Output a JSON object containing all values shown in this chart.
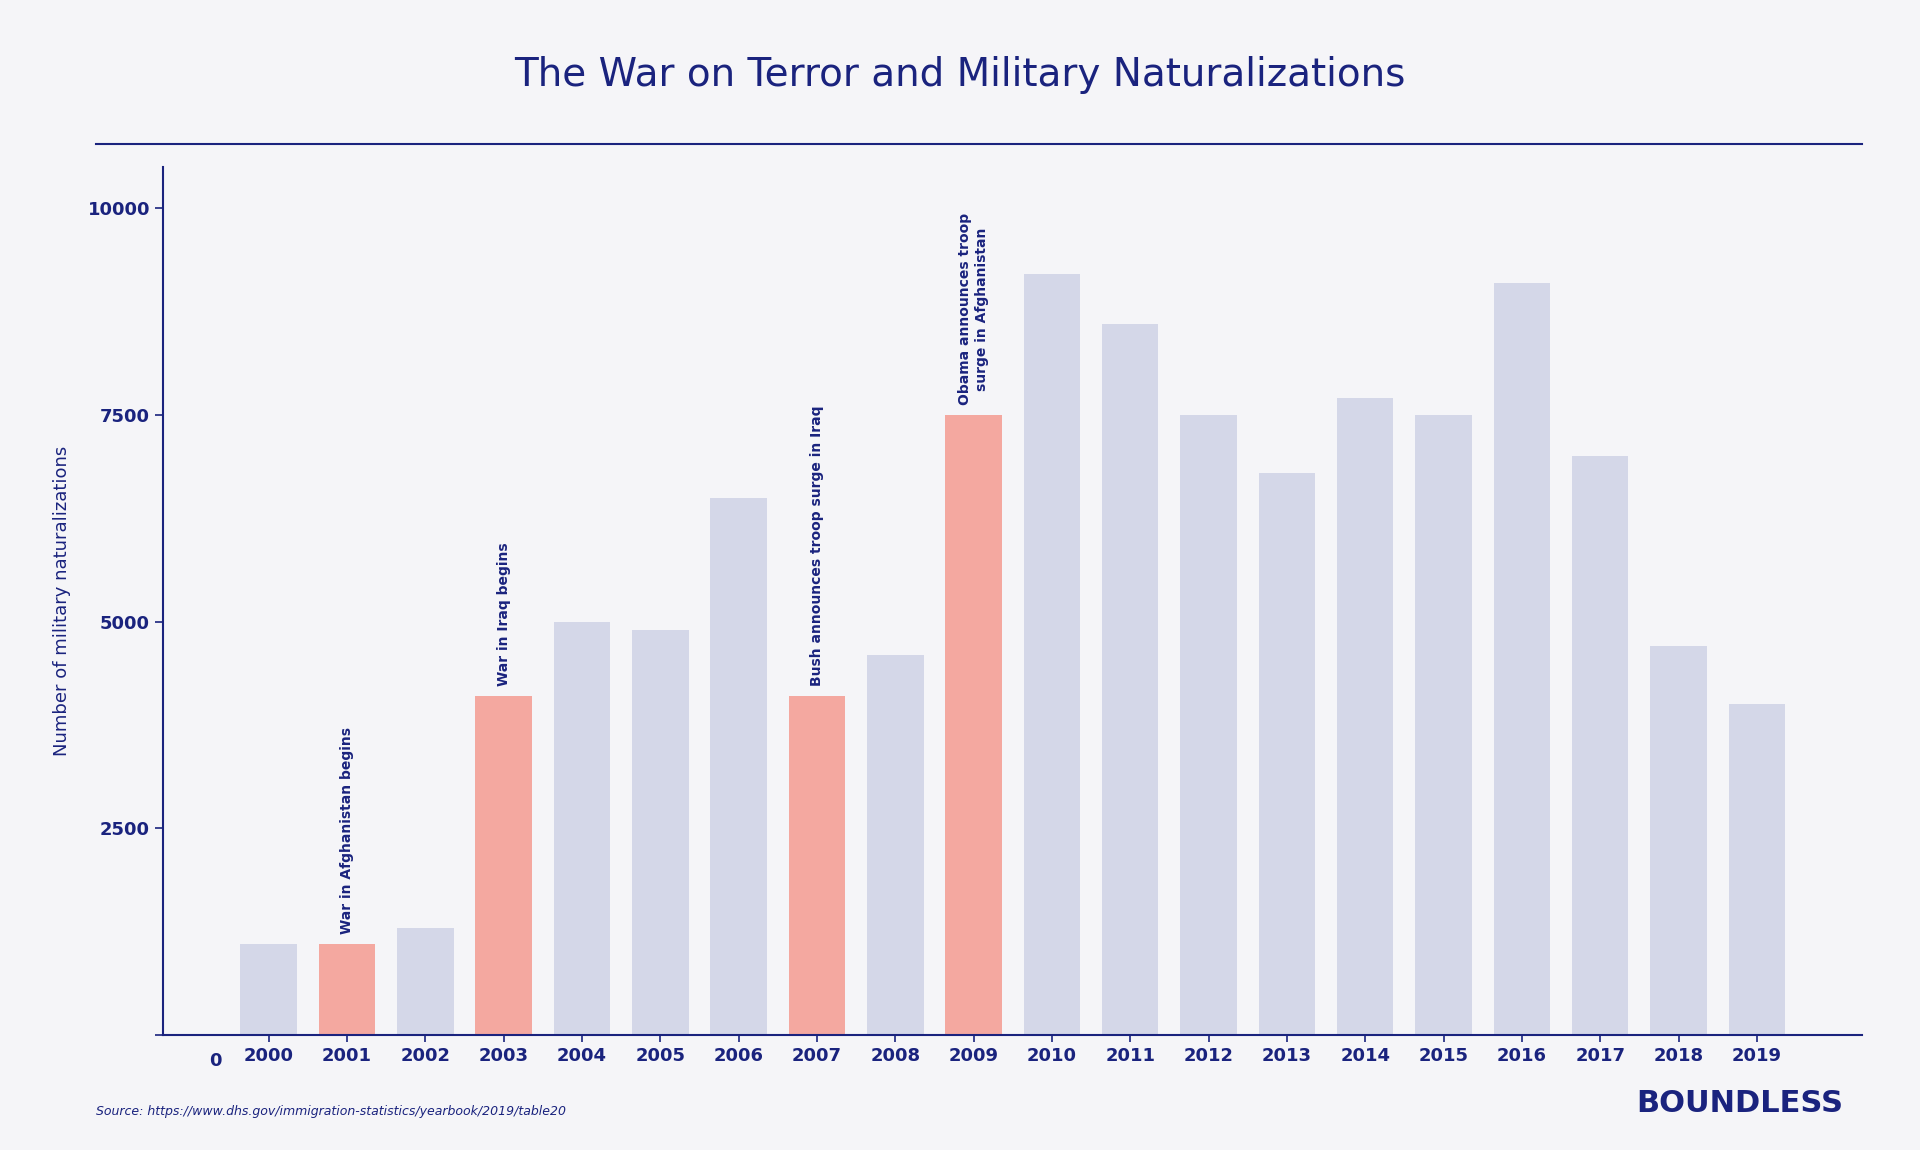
{
  "title": "The War on Terror and Military Naturalizations",
  "ylabel": "Number of military naturalizations",
  "source": "Source: https://www.dhs.gov/immigration-statistics/yearbook/2019/table20",
  "boundless": "BOUNDLESS",
  "years": [
    2000,
    2001,
    2002,
    2003,
    2004,
    2005,
    2006,
    2007,
    2008,
    2009,
    2010,
    2011,
    2012,
    2013,
    2014,
    2015,
    2016,
    2017,
    2018,
    2019
  ],
  "values": [
    1100,
    1100,
    1300,
    4100,
    5000,
    4900,
    6500,
    4100,
    4600,
    7500,
    9200,
    8600,
    7500,
    6800,
    7700,
    7500,
    9100,
    7000,
    4700,
    4000
  ],
  "bar_colors": [
    "#d4d7e8",
    "#f4a8a0",
    "#d4d7e8",
    "#f4a8a0",
    "#d4d7e8",
    "#d4d7e8",
    "#d4d7e8",
    "#f4a8a0",
    "#d4d7e8",
    "#f4a8a0",
    "#d4d7e8",
    "#d4d7e8",
    "#d4d7e8",
    "#d4d7e8",
    "#d4d7e8",
    "#d4d7e8",
    "#d4d7e8",
    "#d4d7e8",
    "#d4d7e8",
    "#d4d7e8"
  ],
  "annotations": [
    {
      "year": 2001,
      "text": "War in Afghanistan begins"
    },
    {
      "year": 2003,
      "text": "War in Iraq begins"
    },
    {
      "year": 2007,
      "text": "Bush announces troop surge in Iraq"
    },
    {
      "year": 2009,
      "text": "Obama announces troop\nsurge in Afghanistan"
    }
  ],
  "ylim": [
    0,
    10500
  ],
  "yticks": [
    0,
    2500,
    5000,
    7500,
    10000
  ],
  "background_color": "#f5f5f8",
  "title_color": "#1a237e",
  "axis_color": "#1a237e",
  "annotation_color": "#1a237e",
  "title_fontsize": 28,
  "ylabel_fontsize": 13,
  "tick_fontsize": 13,
  "annotation_fontsize": 10,
  "source_fontsize": 9,
  "boundless_fontsize": 22
}
